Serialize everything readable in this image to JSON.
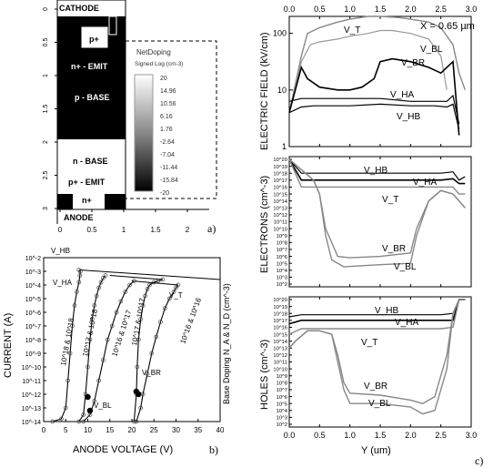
{
  "panel_labels": {
    "a": "a)",
    "b": "b)",
    "c": "c)"
  },
  "device": {
    "cathode": "CATHODE",
    "anode": "ANODE",
    "n_emit": "n+ - EMIT",
    "p_plus": "p+",
    "p_base": "p - BASE",
    "n_base": "n - BASE",
    "p_emit": "p+ - EMIT",
    "n_plus": "n+",
    "y_ticks": [
      "0",
      "0.5",
      "1",
      "1.5",
      "2",
      "2.5",
      "3"
    ],
    "x_ticks": [
      "0",
      "0.5",
      "1",
      "1.5",
      "2"
    ],
    "legend_title": "NetDoping",
    "legend_subtitle": "Signed Log (cm-3)",
    "legend_values": [
      "20",
      "14.96",
      "10.56",
      "6.16",
      "1.76",
      "-2.64",
      "-7.04",
      "-11.44",
      "-15.84",
      "-20"
    ]
  },
  "iv": {
    "xlabel": "ANODE VOLTAGE (V)",
    "ylabel": "CURRENT (A)",
    "side_label": "Base Doping N_A & N_D (cm^-3)",
    "x_ticks": [
      "0",
      "5",
      "10",
      "15",
      "20",
      "25",
      "30",
      "35",
      "40"
    ],
    "y_ticks": [
      "10^-2",
      "10^-3",
      "10^-4",
      "10^-5",
      "10^-6",
      "10^-7",
      "10^-8",
      "10^-9",
      "10^-10",
      "10^-11",
      "10^-12",
      "10^-13",
      "10^-14"
    ],
    "annotations": [
      "V_HB",
      "V_HA",
      "V_T",
      "V_BR",
      "V_BL"
    ],
    "doping_labels": [
      "10^18 & 10^18",
      "10^17 & 10^18",
      "10^16 & 10^17",
      "10^17 & 10^17",
      "10^16 & 10^16"
    ]
  },
  "panel_c": {
    "x_ticks": [
      "0.0",
      "0.5",
      "1.0",
      "1.5",
      "2.0",
      "2.5",
      "3.0"
    ],
    "xlabel": "Y (um)",
    "position_note": "X = 0.65 µm",
    "ef_ylabel": "ELECTRIC FIELD (kV/cm)",
    "ef_ticks": [
      "100",
      "10",
      "1"
    ],
    "el_ylabel": "ELECTRONS (cm^-3)",
    "ho_ylabel": "HOLES (cm^-3)",
    "carrier_ticks": [
      "10^20",
      "10^19",
      "10^18",
      "10^17",
      "10^16",
      "10^15",
      "10^14",
      "10^13",
      "10^12",
      "10^11",
      "10^10",
      "10^9",
      "10^8",
      "10^7",
      "10^6",
      "10^5",
      "10^4",
      "10^3",
      "10^2"
    ],
    "ef_labels": [
      "V_T",
      "V_BL",
      "V_BR",
      "V_HA",
      "V_HB"
    ],
    "el_labels": [
      "V_HB",
      "V_HA",
      "V_T",
      "V_BR",
      "V_BL"
    ],
    "ho_labels": [
      "V_HB",
      "V_HA",
      "V_T",
      "V_BR",
      "V_BL"
    ]
  },
  "chart_data": [
    {
      "type": "line",
      "title": "",
      "xlabel": "ANODE VOLTAGE (V)",
      "ylabel": "CURRENT (A)",
      "xlim": [
        0,
        40
      ],
      "ylim_log10": [
        -14,
        -2
      ],
      "series": [
        {
          "name": "10^18 & 10^18",
          "x": [
            2,
            4,
            5,
            5.5,
            6,
            6.5,
            7,
            7.5,
            8,
            8.2,
            8.3,
            8
          ],
          "y": [
            -14,
            -13.8,
            -13,
            -11,
            -9,
            -7,
            -5.5,
            -4.5,
            -3.8,
            -3.3,
            -3,
            -2.9
          ]
        },
        {
          "name": "10^17 & 10^18",
          "x": [
            8,
            9,
            9.5,
            10,
            10.5,
            11,
            11.5,
            12,
            12.5,
            13,
            13.5,
            14
          ],
          "y": [
            -14,
            -13.5,
            -12,
            -10,
            -8,
            -6.5,
            -5.5,
            -4.8,
            -4.2,
            -3.8,
            -3.5,
            -3.3
          ]
        },
        {
          "name": "10^16 & 10^17",
          "x": [
            9,
            10.5,
            11.5,
            12.5,
            13.5,
            14.5,
            15.5,
            16.5,
            17.5,
            18.5,
            19.5,
            20.5
          ],
          "y": [
            -14,
            -13.5,
            -12.5,
            -11,
            -9.5,
            -8,
            -7,
            -6,
            -5.2,
            -4.5,
            -4,
            -3.7
          ]
        },
        {
          "name": "10^17 & 10^17",
          "x": [
            20.5,
            21,
            21.2,
            21.5,
            22,
            22.5,
            23,
            23.5,
            24,
            25,
            26,
            27
          ],
          "y": [
            -14,
            -12,
            -10,
            -8,
            -6.5,
            -5.5,
            -4.8,
            -4.3,
            -4,
            -3.8,
            -3.7,
            -3.6
          ]
        },
        {
          "name": "10^16 & 10^16",
          "x": [
            21,
            22,
            22.5,
            23.5,
            24.5,
            25.5,
            26.5,
            27.5,
            28.5,
            29.5,
            30,
            30.5
          ],
          "y": [
            -14,
            -13,
            -12,
            -10.5,
            -9,
            -7.8,
            -6.7,
            -5.7,
            -5,
            -4.5,
            -4.2,
            -4
          ]
        }
      ]
    },
    {
      "type": "line",
      "title": "",
      "xlabel": "Y (um)",
      "ylabel": "ELECTRIC FIELD (kV/cm)",
      "xlim": [
        0,
        3
      ],
      "ylim_log10": [
        0,
        2.3
      ],
      "series": [
        {
          "name": "V_T",
          "x": [
            0,
            0.2,
            0.3,
            0.5,
            0.8,
            1.0,
            1.3,
            1.5,
            1.8,
            2.0,
            2.3,
            2.5,
            2.7,
            2.8,
            2.9
          ],
          "y": [
            0.6,
            1.6,
            2.0,
            2.1,
            2.2,
            2.25,
            2.3,
            2.3,
            2.28,
            2.25,
            2.2,
            2.1,
            1.8,
            1.3,
            1.0
          ]
        },
        {
          "name": "V_BL",
          "x": [
            0,
            0.2,
            0.35,
            0.5,
            0.8,
            1.0,
            1.3,
            1.5,
            1.7,
            2.0,
            2.3,
            2.5,
            2.6
          ],
          "y": [
            0.6,
            1.5,
            1.8,
            1.85,
            1.9,
            1.95,
            2.0,
            2.05,
            2.05,
            2.0,
            1.9,
            1.6,
            1.0
          ]
        },
        {
          "name": "V_BR",
          "x": [
            0,
            0.2,
            0.3,
            0.5,
            0.8,
            1.0,
            1.2,
            1.4,
            1.5,
            1.7,
            2.0,
            2.3,
            2.5,
            2.7,
            2.8
          ],
          "y": [
            0.6,
            1.4,
            1.2,
            1.05,
            1.0,
            1.0,
            1.05,
            1.2,
            1.5,
            1.55,
            1.5,
            1.4,
            1.3,
            1.5,
            0.2
          ]
        },
        {
          "name": "V_HA",
          "x": [
            0,
            0.2,
            0.4,
            0.6,
            1.0,
            1.5,
            2.0,
            2.4,
            2.6,
            2.7,
            2.8
          ],
          "y": [
            0.8,
            0.85,
            0.85,
            0.85,
            0.85,
            0.85,
            0.8,
            0.8,
            0.8,
            0.9,
            0.4
          ]
        },
        {
          "name": "V_HB",
          "x": [
            0,
            0.2,
            0.4,
            0.6,
            1.0,
            1.5,
            2.0,
            2.4,
            2.6,
            2.7,
            2.8
          ],
          "y": [
            0.6,
            0.7,
            0.72,
            0.72,
            0.72,
            0.75,
            0.72,
            0.72,
            0.7,
            0.75,
            0.3
          ]
        }
      ]
    },
    {
      "type": "line",
      "title": "",
      "xlabel": "Y (um)",
      "ylabel": "ELECTRONS (cm^-3)",
      "xlim": [
        0,
        3
      ],
      "ylim_log10": [
        2,
        20
      ],
      "series": [
        {
          "name": "V_HB",
          "x": [
            0,
            0.2,
            0.5,
            1,
            1.5,
            2,
            2.5,
            2.7,
            2.8,
            2.9
          ],
          "y": [
            20,
            18,
            18,
            18,
            18,
            18,
            18,
            18.2,
            17,
            17.5
          ]
        },
        {
          "name": "V_HA",
          "x": [
            0,
            0.2,
            0.5,
            1,
            1.5,
            2,
            2.5,
            2.7,
            2.8,
            2.9
          ],
          "y": [
            20,
            17,
            17,
            17,
            17,
            17,
            17,
            17.2,
            16.5,
            16.5
          ]
        },
        {
          "name": "V_T",
          "x": [
            0,
            0.2,
            0.5,
            1,
            1.5,
            2,
            2.5,
            2.7,
            2.8,
            2.9
          ],
          "y": [
            20,
            16,
            16,
            16,
            16,
            16,
            16,
            16,
            15,
            15
          ]
        },
        {
          "name": "V_BR",
          "x": [
            0,
            0.2,
            0.4,
            0.5,
            0.6,
            0.8,
            1,
            1.5,
            2,
            2.1,
            2.3,
            2.5,
            2.7,
            2.8,
            2.9
          ],
          "y": [
            20,
            18.5,
            17,
            15,
            10,
            6,
            5.8,
            6,
            6.5,
            10,
            14,
            15.5,
            15,
            14,
            13
          ]
        },
        {
          "name": "V_BL",
          "x": [
            0,
            0.2,
            0.4,
            0.5,
            0.6,
            0.7,
            0.9,
            1.5,
            2,
            2.1,
            2.3,
            2.5,
            2.7,
            2.8,
            2.9
          ],
          "y": [
            20,
            18.5,
            17,
            15,
            9,
            5.5,
            4.5,
            4.8,
            5,
            9,
            14,
            15.5,
            15,
            14,
            13
          ]
        }
      ]
    },
    {
      "type": "line",
      "title": "",
      "xlabel": "Y (um)",
      "ylabel": "HOLES (cm^-3)",
      "xlim": [
        0,
        3
      ],
      "ylim_log10": [
        2,
        20
      ],
      "series": [
        {
          "name": "V_HB",
          "x": [
            0,
            0.2,
            0.5,
            1,
            1.5,
            2,
            2.5,
            2.7,
            2.8,
            2.9
          ],
          "y": [
            17.5,
            17.8,
            17.8,
            17.8,
            17.8,
            17.8,
            17.8,
            18,
            20,
            20
          ]
        },
        {
          "name": "V_HA",
          "x": [
            0,
            0.2,
            0.5,
            1,
            1.5,
            2,
            2.5,
            2.7,
            2.8,
            2.9
          ],
          "y": [
            16.5,
            17,
            17,
            17,
            17,
            17,
            17,
            17,
            20,
            20
          ]
        },
        {
          "name": "V_T",
          "x": [
            0,
            0.2,
            0.5,
            1,
            1.5,
            2,
            2.5,
            2.7,
            2.8,
            2.9
          ],
          "y": [
            15,
            15.8,
            15.8,
            15.8,
            15.8,
            15.8,
            15.8,
            16,
            20,
            20
          ]
        },
        {
          "name": "V_BR",
          "x": [
            0,
            0.1,
            0.3,
            0.5,
            0.7,
            0.8,
            0.9,
            1.0,
            1.5,
            2.0,
            2.2,
            2.4,
            2.6,
            2.7,
            2.8
          ],
          "y": [
            13,
            14,
            15.5,
            15.5,
            15,
            12,
            8,
            6.5,
            6.2,
            5.5,
            5,
            6,
            12,
            18,
            20
          ]
        },
        {
          "name": "V_BL",
          "x": [
            0,
            0.1,
            0.3,
            0.5,
            0.7,
            0.8,
            0.9,
            1.0,
            1.5,
            2.0,
            2.2,
            2.4,
            2.6,
            2.7,
            2.8
          ],
          "y": [
            13,
            14,
            15.5,
            15.5,
            15,
            11,
            7,
            5,
            5,
            4.5,
            3.5,
            4,
            10,
            18,
            20
          ]
        }
      ]
    }
  ]
}
